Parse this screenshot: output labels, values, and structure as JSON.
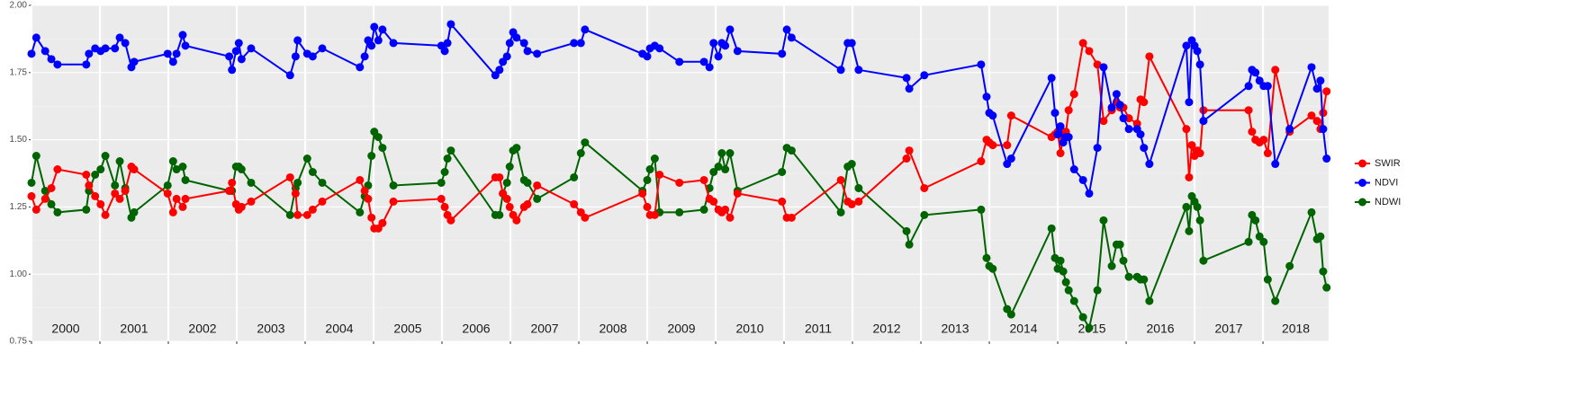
{
  "chart_data": {
    "type": "line",
    "x": [
      2000.0,
      2000.07,
      2000.2,
      2000.29,
      2000.38,
      2000.8,
      2000.84,
      2000.93,
      2001.01,
      2001.08,
      2001.22,
      2001.29,
      2001.37,
      2001.46,
      2001.5,
      2001.99,
      2002.07,
      2002.12,
      2002.21,
      2002.25,
      2002.89,
      2002.93,
      2002.99,
      2003.03,
      2003.07,
      2003.21,
      2003.78,
      2003.86,
      2003.89,
      2004.03,
      2004.11,
      2004.25,
      2004.8,
      2004.87,
      2004.92,
      2004.97,
      2005.01,
      2005.07,
      2005.13,
      2005.29,
      2005.99,
      2006.04,
      2006.08,
      2006.13,
      2006.78,
      2006.84,
      2006.89,
      2006.95,
      2006.99,
      2007.04,
      2007.09,
      2007.2,
      2007.25,
      2007.39,
      2007.93,
      2008.03,
      2008.09,
      2008.93,
      2009.0,
      2009.04,
      2009.11,
      2009.18,
      2009.47,
      2009.83,
      2009.91,
      2009.97,
      2010.04,
      2010.09,
      2010.14,
      2010.21,
      2010.32,
      2010.97,
      2011.04,
      2011.11,
      2011.83,
      2011.93,
      2011.99,
      2012.09,
      2012.79,
      2012.83,
      2013.05,
      2013.88,
      2013.96,
      2014.0,
      2014.05,
      2014.26,
      2014.32,
      2014.91,
      2014.96,
      2015.0,
      2015.04,
      2015.08,
      2015.12,
      2015.16,
      2015.24,
      2015.37,
      2015.46,
      2015.58,
      2015.67,
      2015.79,
      2015.86,
      2015.91,
      2015.96,
      2016.04,
      2016.16,
      2016.21,
      2016.26,
      2016.34,
      2016.88,
      2016.92,
      2016.96,
      2017.0,
      2017.04,
      2017.08,
      2017.13,
      2017.79,
      2017.84,
      2017.89,
      2017.95,
      2018.01,
      2018.07,
      2018.18,
      2018.39,
      2018.71,
      2018.79,
      2018.84,
      2018.88,
      2018.93
    ],
    "series": [
      {
        "name": "SWIR",
        "color": "#ff0000",
        "values": [
          1.29,
          1.24,
          1.28,
          1.32,
          1.39,
          1.37,
          1.33,
          1.29,
          1.26,
          1.22,
          1.3,
          1.28,
          1.31,
          1.4,
          1.39,
          1.3,
          1.23,
          1.28,
          1.25,
          1.28,
          1.31,
          1.34,
          1.26,
          1.24,
          1.25,
          1.27,
          1.36,
          1.3,
          1.22,
          1.22,
          1.24,
          1.27,
          1.35,
          1.31,
          1.28,
          1.21,
          1.17,
          1.17,
          1.19,
          1.27,
          1.28,
          1.25,
          1.22,
          1.2,
          1.36,
          1.36,
          1.3,
          1.28,
          1.25,
          1.22,
          1.2,
          1.25,
          1.26,
          1.33,
          1.26,
          1.23,
          1.21,
          1.3,
          1.25,
          1.22,
          1.22,
          1.37,
          1.34,
          1.35,
          1.28,
          1.27,
          1.24,
          1.23,
          1.24,
          1.21,
          1.3,
          1.27,
          1.21,
          1.21,
          1.35,
          1.27,
          1.26,
          1.27,
          1.43,
          1.46,
          1.32,
          1.42,
          1.5,
          1.49,
          1.48,
          1.48,
          1.59,
          1.51,
          1.52,
          1.53,
          1.45,
          1.51,
          1.53,
          1.61,
          1.67,
          1.86,
          1.83,
          1.78,
          1.57,
          1.61,
          1.64,
          1.62,
          1.62,
          1.58,
          1.56,
          1.65,
          1.64,
          1.81,
          1.54,
          1.36,
          1.48,
          1.44,
          1.46,
          1.45,
          1.61,
          1.61,
          1.53,
          1.5,
          1.49,
          1.5,
          1.45,
          1.76,
          1.53,
          1.59,
          1.57,
          1.54,
          1.6,
          1.68
        ]
      },
      {
        "name": "NDVI",
        "color": "#0000ff",
        "values": [
          1.82,
          1.88,
          1.83,
          1.8,
          1.78,
          1.78,
          1.82,
          1.84,
          1.83,
          1.84,
          1.84,
          1.88,
          1.86,
          1.77,
          1.79,
          1.82,
          1.79,
          1.82,
          1.89,
          1.85,
          1.81,
          1.76,
          1.83,
          1.86,
          1.8,
          1.84,
          1.74,
          1.81,
          1.87,
          1.82,
          1.81,
          1.84,
          1.77,
          1.81,
          1.87,
          1.85,
          1.92,
          1.87,
          1.91,
          1.86,
          1.85,
          1.83,
          1.86,
          1.93,
          1.74,
          1.76,
          1.79,
          1.81,
          1.86,
          1.9,
          1.88,
          1.86,
          1.83,
          1.82,
          1.86,
          1.86,
          1.91,
          1.82,
          1.81,
          1.84,
          1.85,
          1.84,
          1.79,
          1.79,
          1.77,
          1.86,
          1.81,
          1.86,
          1.85,
          1.91,
          1.83,
          1.82,
          1.91,
          1.88,
          1.76,
          1.86,
          1.86,
          1.76,
          1.73,
          1.69,
          1.74,
          1.78,
          1.66,
          1.6,
          1.59,
          1.41,
          1.43,
          1.73,
          1.6,
          1.52,
          1.55,
          1.49,
          1.51,
          1.51,
          1.39,
          1.35,
          1.3,
          1.47,
          1.77,
          1.62,
          1.67,
          1.63,
          1.58,
          1.54,
          1.54,
          1.52,
          1.47,
          1.41,
          1.85,
          1.64,
          1.87,
          1.85,
          1.83,
          1.78,
          1.57,
          1.7,
          1.76,
          1.75,
          1.72,
          1.7,
          1.7,
          1.41,
          1.54,
          1.77,
          1.69,
          1.72,
          1.54,
          1.43
        ]
      },
      {
        "name": "NDWI",
        "color": "#006400",
        "values": [
          1.34,
          1.44,
          1.31,
          1.26,
          1.23,
          1.24,
          1.31,
          1.37,
          1.39,
          1.44,
          1.33,
          1.42,
          1.32,
          1.21,
          1.23,
          1.33,
          1.42,
          1.39,
          1.4,
          1.35,
          1.31,
          1.31,
          1.4,
          1.4,
          1.39,
          1.34,
          1.22,
          1.32,
          1.34,
          1.43,
          1.38,
          1.34,
          1.23,
          1.29,
          1.33,
          1.44,
          1.53,
          1.51,
          1.47,
          1.33,
          1.34,
          1.38,
          1.43,
          1.46,
          1.22,
          1.22,
          1.3,
          1.34,
          1.4,
          1.46,
          1.47,
          1.35,
          1.34,
          1.28,
          1.36,
          1.45,
          1.49,
          1.31,
          1.35,
          1.39,
          1.43,
          1.23,
          1.23,
          1.24,
          1.32,
          1.38,
          1.4,
          1.45,
          1.39,
          1.45,
          1.31,
          1.38,
          1.47,
          1.46,
          1.23,
          1.4,
          1.41,
          1.32,
          1.16,
          1.11,
          1.22,
          1.24,
          1.06,
          1.03,
          1.02,
          0.87,
          0.85,
          1.17,
          1.06,
          1.02,
          1.05,
          1.01,
          0.97,
          0.94,
          0.9,
          0.84,
          0.8,
          0.94,
          1.2,
          1.03,
          1.11,
          1.11,
          1.05,
          0.99,
          0.99,
          0.98,
          0.98,
          0.9,
          1.25,
          1.16,
          1.29,
          1.27,
          1.25,
          1.2,
          1.05,
          1.12,
          1.22,
          1.2,
          1.14,
          1.12,
          0.98,
          0.9,
          1.03,
          1.23,
          1.13,
          1.14,
          1.01,
          0.95
        ]
      }
    ],
    "xlim": [
      2000,
      2018.96
    ],
    "xticks": [
      2000,
      2001,
      2002,
      2003,
      2004,
      2005,
      2006,
      2007,
      2008,
      2009,
      2010,
      2011,
      2012,
      2013,
      2014,
      2015,
      2016,
      2017,
      2018
    ],
    "ylim": [
      0.75,
      2.0
    ],
    "yticks": [
      0.75,
      {
        "value": 1.0,
        "label": "1.00"
      },
      1.25,
      {
        "value": 1.5,
        "label": "1.50"
      },
      1.75,
      {
        "value": 2.0,
        "label": "2.00"
      }
    ],
    "grid": true,
    "legend": "right"
  }
}
